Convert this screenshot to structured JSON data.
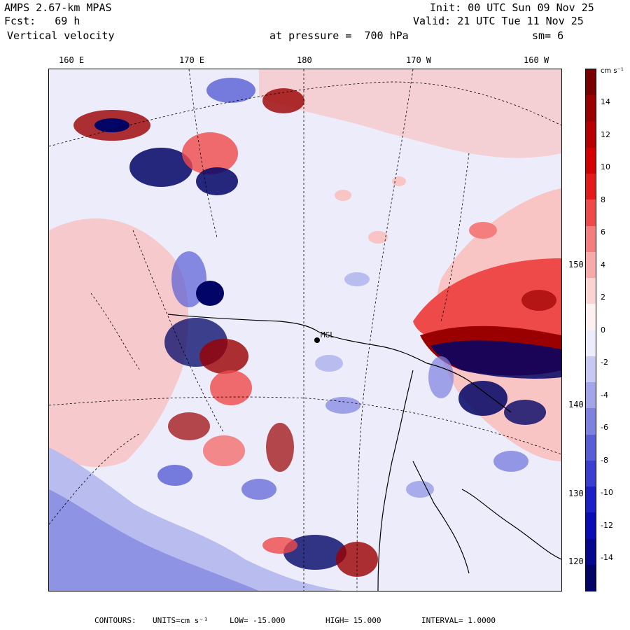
{
  "header": {
    "model": "AMPS 2.67-km MPAS",
    "forecast": "Fcst:   69 h",
    "field": "Vertical velocity",
    "init": "Init: 00 UTC Sun 09 Nov 25",
    "valid": "Valid: 21 UTC Tue 11 Nov 25",
    "pressure": "at pressure =  700 hPa",
    "smoothing": "sm= 6"
  },
  "top_axis": [
    "160 E",
    "170 E",
    "180",
    "170 W",
    "160 W"
  ],
  "right_axis": [
    "150 W",
    "140 W",
    "130 W",
    "120 W"
  ],
  "station": "MGL",
  "colorbar": {
    "unit": "cm s⁻¹",
    "labels": [
      "14",
      "12",
      "10",
      "8",
      "6",
      "4",
      "2",
      "0",
      "-2",
      "-4",
      "-6",
      "-8",
      "-10",
      "-12",
      "-14"
    ],
    "colors": [
      "#7a0000",
      "#9b0000",
      "#b80000",
      "#d40000",
      "#e41a1a",
      "#ef4a4a",
      "#f47d7d",
      "#f8aaaa",
      "#fbd3d3",
      "#fdf0f0",
      "#ececfa",
      "#c7c9f2",
      "#a2a5ea",
      "#7d82e0",
      "#585ed6",
      "#3a3fcf",
      "#1c20c6",
      "#0a0db5",
      "#05088f",
      "#020566"
    ]
  },
  "footer": {
    "contours": "CONTOURS:",
    "units": "UNITS=cm s⁻¹",
    "low": "LOW= -15.000",
    "high": "HIGH= 15.000",
    "interval": "INTERVAL=  1.0000"
  },
  "field_colors": {
    "background": "#ececfa",
    "light_red": "#f8c4c4",
    "red": "#ef4a4a",
    "dark_red": "#9b0000",
    "light_blue": "#b9bcef",
    "blue": "#585ed6",
    "dark_blue": "#05088f"
  }
}
